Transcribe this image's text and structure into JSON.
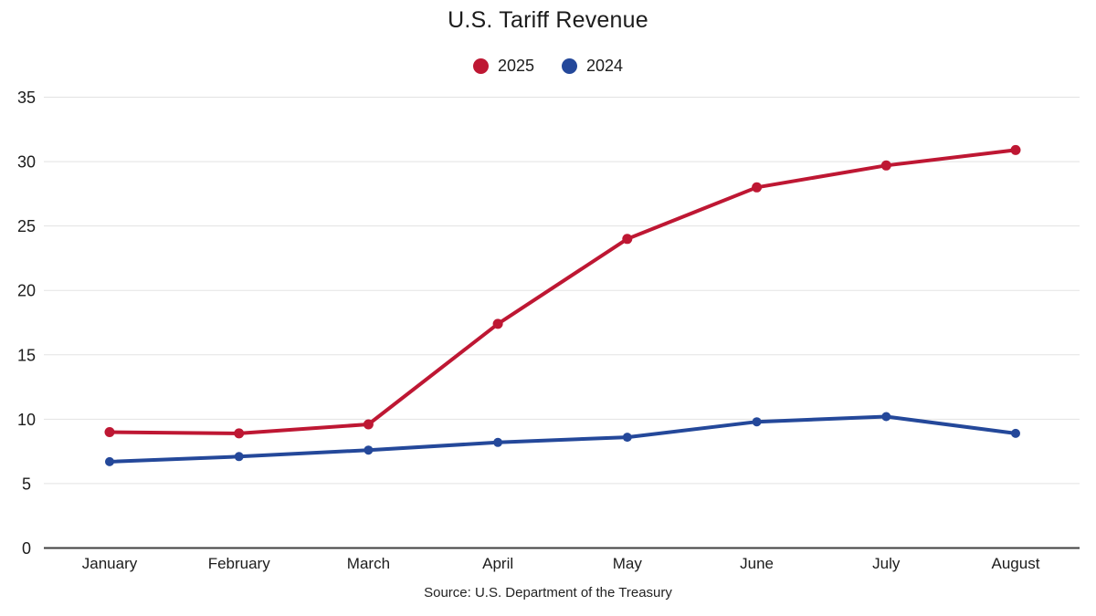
{
  "title": "U.S. Tariff Revenue",
  "source": "Source: U.S. Department of the Treasury",
  "colors": {
    "series_2025": "#be1733",
    "series_2024": "#24489a",
    "gridline": "#e3e3e3",
    "baseline": "#3f3f3f",
    "text": "#1c1c1c"
  },
  "chart_data": {
    "type": "line",
    "title": "U.S. Tariff Revenue",
    "xlabel": "",
    "ylabel": "",
    "categories": [
      "January",
      "February",
      "March",
      "April",
      "May",
      "June",
      "July",
      "August"
    ],
    "series": [
      {
        "name": "2025",
        "color": "#be1733",
        "values": [
          9.0,
          8.9,
          9.6,
          17.4,
          24.0,
          28.0,
          29.7,
          30.9
        ]
      },
      {
        "name": "2024",
        "color": "#24489a",
        "values": [
          6.7,
          7.1,
          7.6,
          8.2,
          8.6,
          9.8,
          10.2,
          8.9
        ]
      }
    ],
    "ylim": [
      0,
      35
    ],
    "yticks": [
      0,
      5,
      10,
      15,
      20,
      25,
      30,
      35
    ],
    "grid": true,
    "legend_position": "top",
    "source_note": "Source: U.S. Department of the Treasury"
  }
}
